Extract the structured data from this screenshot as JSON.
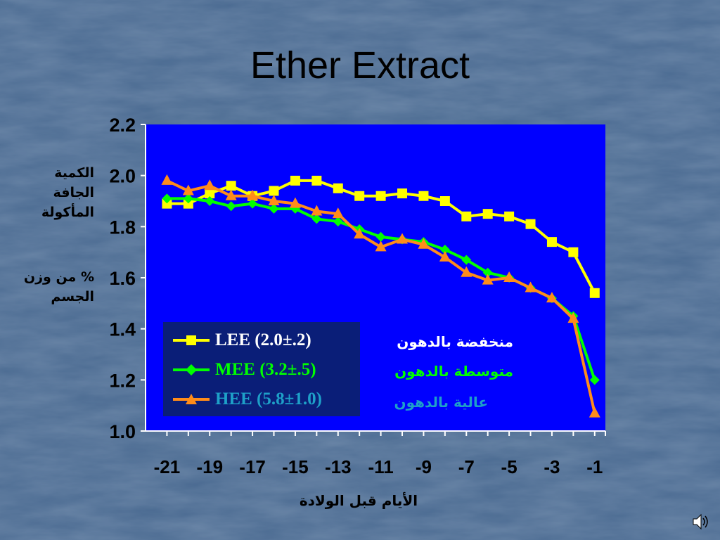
{
  "slide": {
    "title": "Ether Extract",
    "y_axis_label_line1": "الكمية الجافة المأكولة",
    "y_axis_label_line2": "% من وزن الجسم",
    "x_axis_label": "الأيام قبل الولادة",
    "arabic_notes": [
      "منخفضة بالدهون",
      "متوسطة بالدهون",
      "عالية بالدهون"
    ],
    "speaker_icon": "speaker-icon"
  },
  "colors": {
    "slide_bg": "#4a6a91",
    "plot_bg": "#0000ff",
    "legend_bg": "#0a1e78",
    "lee": "#ffff00",
    "mee": "#00ff00",
    "hee": "#ff8c1a",
    "hee_text": "#1ea0c8"
  },
  "chart_data": {
    "type": "line",
    "title": "Ether Extract",
    "xlabel": "الأيام قبل الولادة",
    "ylabel": "الكمية الجافة المأكولة % من وزن الجسم",
    "xlim": [
      -22,
      -0.5
    ],
    "ylim": [
      1.0,
      2.2
    ],
    "x_ticks": [
      -21,
      -19,
      -17,
      -15,
      -13,
      -11,
      -9,
      -7,
      -5,
      -3,
      -1
    ],
    "x_tick_labels": [
      "-21",
      "-19",
      "-17",
      "-15",
      "-13",
      "-11",
      "-9",
      "-7",
      "-5",
      "-3",
      "-1"
    ],
    "y_ticks": [
      1.0,
      1.2,
      1.4,
      1.6,
      1.8,
      2.0,
      2.2
    ],
    "y_tick_labels": [
      "1.0",
      "1.2",
      "1.4",
      "1.6",
      "1.8",
      "2.0",
      "2.2"
    ],
    "legend_position": "bottom-left",
    "x": [
      -21,
      -20,
      -19,
      -18,
      -17,
      -16,
      -15,
      -14,
      -13,
      -12,
      -11,
      -10,
      -9,
      -8,
      -7,
      -6,
      -5,
      -4,
      -3,
      -2,
      -1
    ],
    "series": [
      {
        "name": "LEE (2.0±.2)",
        "marker": "square",
        "values": [
          1.89,
          1.89,
          1.93,
          1.96,
          1.92,
          1.94,
          1.98,
          1.98,
          1.95,
          1.92,
          1.92,
          1.93,
          1.92,
          1.9,
          1.84,
          1.85,
          1.84,
          1.81,
          1.74,
          1.7,
          1.54
        ]
      },
      {
        "name": "MEE (3.2±.5)",
        "marker": "diamond",
        "values": [
          1.91,
          1.91,
          1.9,
          1.88,
          1.89,
          1.87,
          1.87,
          1.83,
          1.82,
          1.79,
          1.76,
          1.75,
          1.74,
          1.71,
          1.67,
          1.62,
          1.6,
          1.56,
          1.52,
          1.45,
          1.2
        ]
      },
      {
        "name": "HEE (5.8±1.0)",
        "marker": "triangle",
        "values": [
          1.98,
          1.94,
          1.96,
          1.92,
          1.92,
          1.9,
          1.89,
          1.86,
          1.85,
          1.77,
          1.72,
          1.75,
          1.73,
          1.68,
          1.62,
          1.59,
          1.6,
          1.56,
          1.52,
          1.44,
          1.07
        ]
      }
    ]
  }
}
